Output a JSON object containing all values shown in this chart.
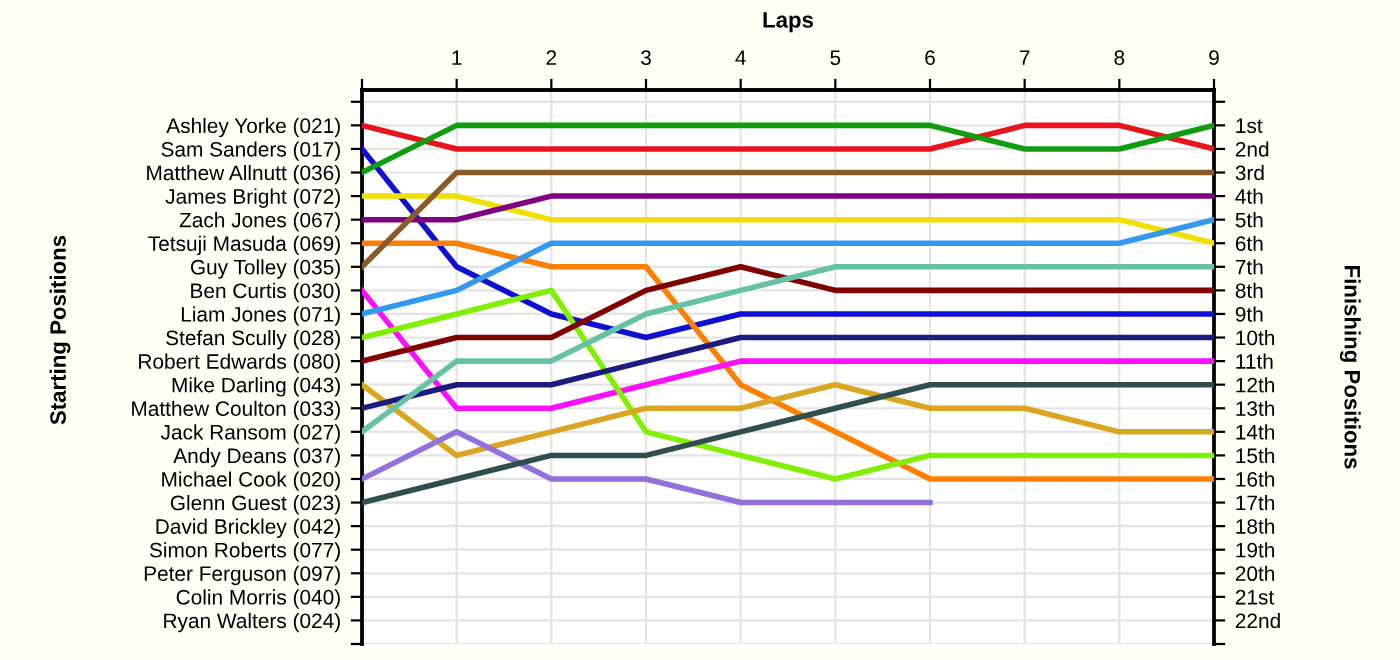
{
  "chart_data": {
    "type": "line",
    "xlabel": "Laps",
    "y2label": "Finishing Positions",
    "annotations": [
      "Starting Positions"
    ],
    "x": [
      0,
      1,
      2,
      3,
      4,
      5,
      6,
      7,
      8,
      9
    ],
    "xlim": [
      0,
      9
    ],
    "xticks": [
      {
        "value": 0,
        "label": null
      },
      1,
      2,
      3,
      4,
      5,
      6,
      7,
      8,
      9
    ],
    "y_categories": [
      "Ashley Yorke (021)",
      "Sam Sanders (017)",
      "Matthew Allnutt (036)",
      "James Bright (072)",
      "Zach Jones (067)",
      "Tetsuji Masuda (069)",
      "Guy Tolley (035)",
      "Ben Curtis (030)",
      "Liam Jones (071)",
      "Stefan Scully (028)",
      "Robert Edwards (080)",
      "Mike Darling (043)",
      "Matthew Coulton (033)",
      "Jack Ransom (027)",
      "Andy Deans (037)",
      "Michael Cook (020)",
      "Glenn Guest (023)",
      "David Brickley (042)",
      "Simon Roberts (077)",
      "Peter Ferguson (097)",
      "Colin Morris (040)",
      "Ryan Walters (024)"
    ],
    "y2lim": [
      23,
      -0.5
    ],
    "y2ticks": [
      {
        "value": 0,
        "label": null
      },
      {
        "value": 1,
        "label": "1st"
      },
      {
        "value": 2,
        "label": "2nd"
      },
      {
        "value": 3,
        "label": "3rd"
      },
      {
        "value": 4,
        "label": "4th"
      },
      {
        "value": 5,
        "label": "5th"
      },
      {
        "value": 6,
        "label": "6th"
      },
      {
        "value": 7,
        "label": "7th"
      },
      {
        "value": 8,
        "label": "8th"
      },
      {
        "value": 9,
        "label": "9th"
      },
      {
        "value": 10,
        "label": "10th"
      },
      {
        "value": 11,
        "label": "11th"
      },
      {
        "value": 12,
        "label": "12th"
      },
      {
        "value": 13,
        "label": "13th"
      },
      {
        "value": 14,
        "label": "14th"
      },
      {
        "value": 15,
        "label": "15th"
      },
      {
        "value": 16,
        "label": "16th"
      },
      {
        "value": 17,
        "label": "17th"
      },
      {
        "value": 18,
        "label": "18th"
      },
      {
        "value": 19,
        "label": "19th"
      },
      {
        "value": 20,
        "label": "20th"
      },
      {
        "value": 21,
        "label": "21st"
      },
      {
        "value": 22,
        "label": "22nd"
      },
      {
        "value": 23,
        "label": null
      }
    ],
    "grid": true,
    "marker": "none",
    "line_style": "solid",
    "series": [
      {
        "axis": "y2",
        "color": "#e8141c",
        "values": [
          1,
          2,
          2,
          2,
          2,
          2,
          2,
          1,
          1,
          2
        ]
      },
      {
        "axis": "y2",
        "color": "#1010d0",
        "values": [
          2,
          7,
          9,
          10,
          9,
          9,
          9,
          9,
          9,
          9
        ]
      },
      {
        "axis": "y2",
        "color": "#109c10",
        "values": [
          3,
          1,
          1,
          1,
          1,
          1,
          1,
          2,
          2,
          1
        ]
      },
      {
        "axis": "y2",
        "color": "#f0e000",
        "values": [
          4,
          4,
          5,
          5,
          5,
          5,
          5,
          5,
          5,
          6
        ]
      },
      {
        "axis": "y2",
        "color": "#800080",
        "values": [
          5,
          5,
          4,
          4,
          4,
          4,
          4,
          4,
          4,
          4
        ]
      },
      {
        "axis": "y2",
        "color": "#ff8000",
        "values": [
          6,
          6,
          7,
          7,
          12,
          14,
          16,
          16,
          16,
          16
        ]
      },
      {
        "axis": "y2",
        "color": "#8b5a2b",
        "values": [
          7,
          3,
          3,
          3,
          3,
          3,
          3,
          3,
          3,
          3
        ]
      },
      {
        "axis": "y2",
        "color": "#ff10ff",
        "values": [
          8,
          13,
          13,
          12,
          11,
          11,
          11,
          11,
          11,
          11
        ]
      },
      {
        "axis": "y2",
        "color": "#3399ee",
        "values": [
          9,
          8,
          6,
          6,
          6,
          6,
          6,
          6,
          6,
          5
        ]
      },
      {
        "axis": "y2",
        "color": "#80f000",
        "values": [
          10,
          9,
          8,
          14,
          15,
          16,
          15,
          15,
          15,
          15
        ]
      },
      {
        "axis": "y2",
        "color": "#800000",
        "values": [
          11,
          10,
          10,
          8,
          7,
          8,
          8,
          8,
          8,
          8
        ]
      },
      {
        "axis": "y2",
        "color": "#daa520",
        "values": [
          12,
          15,
          14,
          13,
          13,
          12,
          13,
          13,
          14,
          14
        ]
      },
      {
        "axis": "y2",
        "color": "#1c1c80",
        "values": [
          13,
          12,
          12,
          11,
          10,
          10,
          10,
          10,
          10,
          10
        ]
      },
      {
        "axis": "y2",
        "color": "#66c2a5",
        "values": [
          14,
          11,
          11,
          9,
          8,
          7,
          7,
          7,
          7,
          7
        ]
      },
      {
        "axis": "y2",
        "color": "#9370db",
        "values": [
          16,
          14,
          16,
          16,
          17,
          17,
          17,
          null,
          null,
          null
        ]
      },
      {
        "axis": "y2",
        "color": "#2f4f4f",
        "values": [
          17,
          16,
          15,
          15,
          14,
          13,
          12,
          12,
          12,
          12
        ]
      }
    ]
  }
}
